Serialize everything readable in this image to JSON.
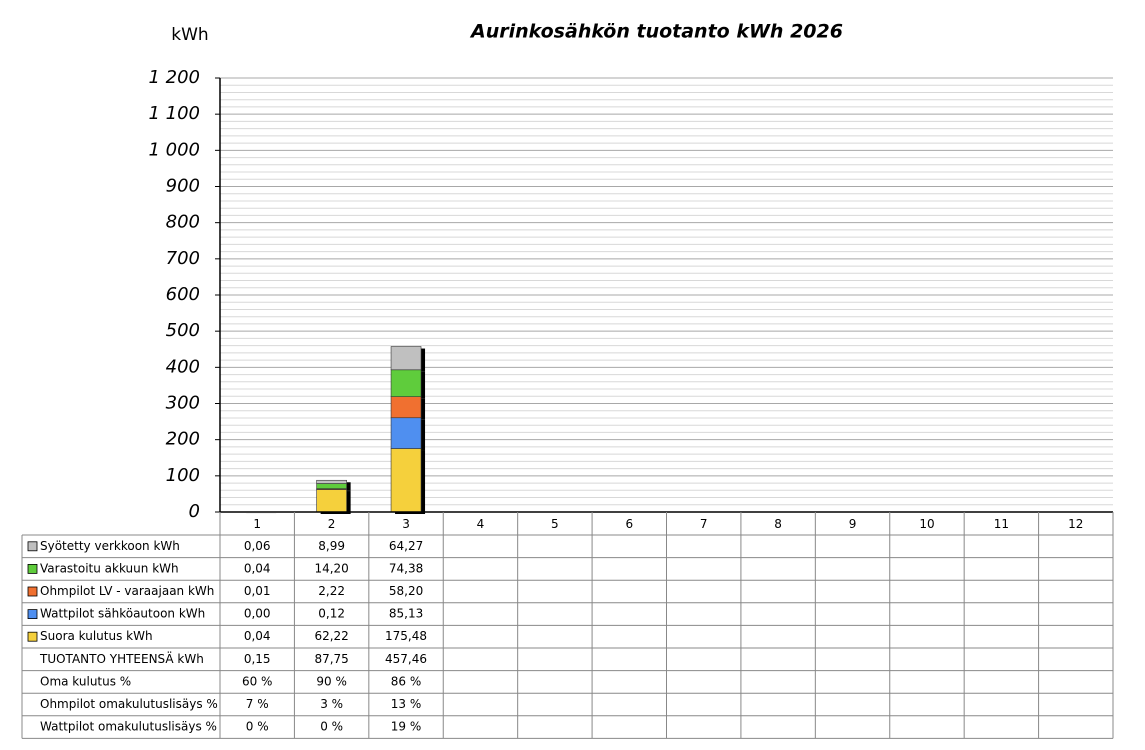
{
  "chart_data": {
    "type": "bar",
    "stacked": true,
    "title": "Aurinkosähkön tuotanto kWh 2026",
    "y_label": "kWh",
    "categories": [
      "1",
      "2",
      "3",
      "4",
      "5",
      "6",
      "7",
      "8",
      "9",
      "10",
      "11",
      "12"
    ],
    "series": [
      {
        "name": "Syötetty verkkoon kWh",
        "color": "#c0c0c0",
        "values": [
          0.06,
          8.99,
          64.27,
          null,
          null,
          null,
          null,
          null,
          null,
          null,
          null,
          null
        ],
        "value_labels": [
          "0,06",
          "8,99",
          "64,27",
          null,
          null,
          null,
          null,
          null,
          null,
          null,
          null,
          null
        ]
      },
      {
        "name": "Varastoitu akkuun kWh",
        "color": "#5fcc3c",
        "values": [
          0.04,
          14.2,
          74.38,
          null,
          null,
          null,
          null,
          null,
          null,
          null,
          null,
          null
        ],
        "value_labels": [
          "0,04",
          "14,20",
          "74,38",
          null,
          null,
          null,
          null,
          null,
          null,
          null,
          null,
          null
        ]
      },
      {
        "name": "Ohmpilot LV - varaajaan kWh",
        "color": "#f07030",
        "values": [
          0.01,
          2.22,
          58.2,
          null,
          null,
          null,
          null,
          null,
          null,
          null,
          null,
          null
        ],
        "value_labels": [
          "0,01",
          "2,22",
          "58,20",
          null,
          null,
          null,
          null,
          null,
          null,
          null,
          null,
          null
        ]
      },
      {
        "name": "Wattpilot sähköautoon kWh",
        "color": "#4f8ff0",
        "values": [
          0.0,
          0.12,
          85.13,
          null,
          null,
          null,
          null,
          null,
          null,
          null,
          null,
          null
        ],
        "value_labels": [
          "0,00",
          "0,12",
          "85,13",
          null,
          null,
          null,
          null,
          null,
          null,
          null,
          null,
          null
        ]
      },
      {
        "name": "Suora kulutus kWh",
        "color": "#f5d03c",
        "values": [
          0.04,
          62.22,
          175.48,
          null,
          null,
          null,
          null,
          null,
          null,
          null,
          null,
          null
        ],
        "value_labels": [
          "0,04",
          "62,22",
          "175,48",
          null,
          null,
          null,
          null,
          null,
          null,
          null,
          null,
          null
        ]
      }
    ],
    "table_rows": [
      {
        "name": "TUOTANTO YHTEENSÄ kWh",
        "values": [
          0.15,
          87.75,
          457.46,
          null,
          null,
          null,
          null,
          null,
          null,
          null,
          null,
          null
        ],
        "value_labels": [
          "0,15",
          "87,75",
          "457,46",
          null,
          null,
          null,
          null,
          null,
          null,
          null,
          null,
          null
        ]
      },
      {
        "name": "Oma kulutus %",
        "values": [
          60,
          90,
          86,
          null,
          null,
          null,
          null,
          null,
          null,
          null,
          null,
          null
        ],
        "value_labels": [
          "60 %",
          "90 %",
          "86 %",
          null,
          null,
          null,
          null,
          null,
          null,
          null,
          null,
          null
        ]
      },
      {
        "name": "Ohmpilot omakulutuslisäys %",
        "values": [
          7,
          3,
          13,
          null,
          null,
          null,
          null,
          null,
          null,
          null,
          null,
          null
        ],
        "value_labels": [
          "7 %",
          "3 %",
          "13 %",
          null,
          null,
          null,
          null,
          null,
          null,
          null,
          null,
          null
        ]
      },
      {
        "name": "Wattpilot omakulutuslisäys %",
        "values": [
          0,
          0,
          19,
          null,
          null,
          null,
          null,
          null,
          null,
          null,
          null,
          null
        ],
        "value_labels": [
          "0 %",
          "0 %",
          "19 %",
          null,
          null,
          null,
          null,
          null,
          null,
          null,
          null,
          null
        ]
      }
    ],
    "ylim": [
      0,
      1200
    ],
    "yticks": [
      0,
      100,
      200,
      300,
      400,
      500,
      600,
      700,
      800,
      900,
      {
        "value": 1000,
        "label": "1 000"
      },
      {
        "value": 1100,
        "label": "1 100"
      },
      {
        "value": 1200,
        "label": "1 200"
      }
    ],
    "grid": true
  }
}
